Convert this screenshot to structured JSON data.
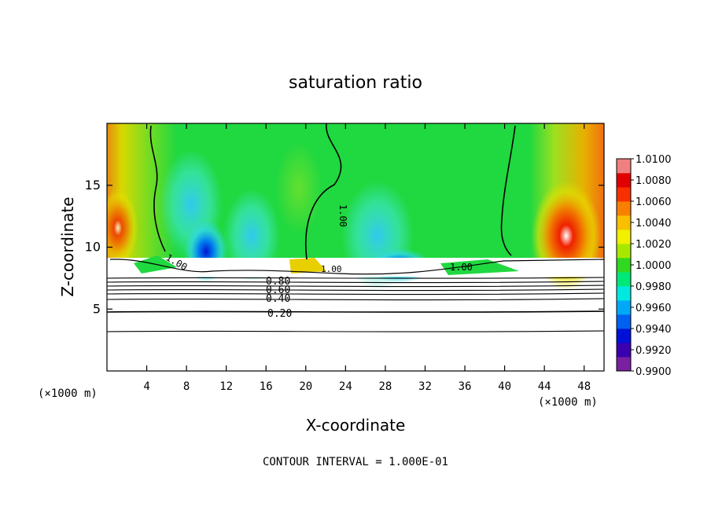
{
  "chart_data": {
    "type": "heatmap",
    "title": "saturation ratio",
    "xlabel": "X-coordinate",
    "ylabel": "Z-coordinate",
    "x_unit_left": "(×1000 m)",
    "x_unit_right": "(×1000 m)",
    "xlim": [
      0,
      50
    ],
    "ylim": [
      0,
      20
    ],
    "x_ticks": [
      4,
      8,
      12,
      16,
      20,
      24,
      28,
      32,
      36,
      40,
      44,
      48
    ],
    "x_tick_labels": [
      "4",
      "8",
      "12",
      "16",
      "20",
      "24",
      "28",
      "32",
      "36",
      "40",
      "44",
      "48"
    ],
    "y_ticks": [
      5,
      10,
      15
    ],
    "y_tick_labels": [
      "5",
      "10",
      "15"
    ],
    "colorbar": {
      "min": 0.99,
      "max": 1.01,
      "labels": [
        "1.0100",
        "1.0080",
        "1.0060",
        "1.0040",
        "1.0020",
        "1.0000",
        "0.9980",
        "0.9960",
        "0.9940",
        "0.9920",
        "0.9900"
      ],
      "colors": [
        "#7a1fa0",
        "#3a00b0",
        "#0010d8",
        "#0060f0",
        "#00a8f8",
        "#00e8e0",
        "#00e878",
        "#30d820",
        "#a8e800",
        "#f0f000",
        "#f8c000",
        "#f88000",
        "#f83000",
        "#e00000",
        "#f08080"
      ]
    },
    "contour_labels": [
      "1.00",
      "1.00",
      "1.00",
      "1.00",
      "0.80",
      "0.60",
      "0.40",
      "0.20"
    ],
    "contour_interval_text": "CONTOUR INTERVAL = 1.000E-01"
  }
}
